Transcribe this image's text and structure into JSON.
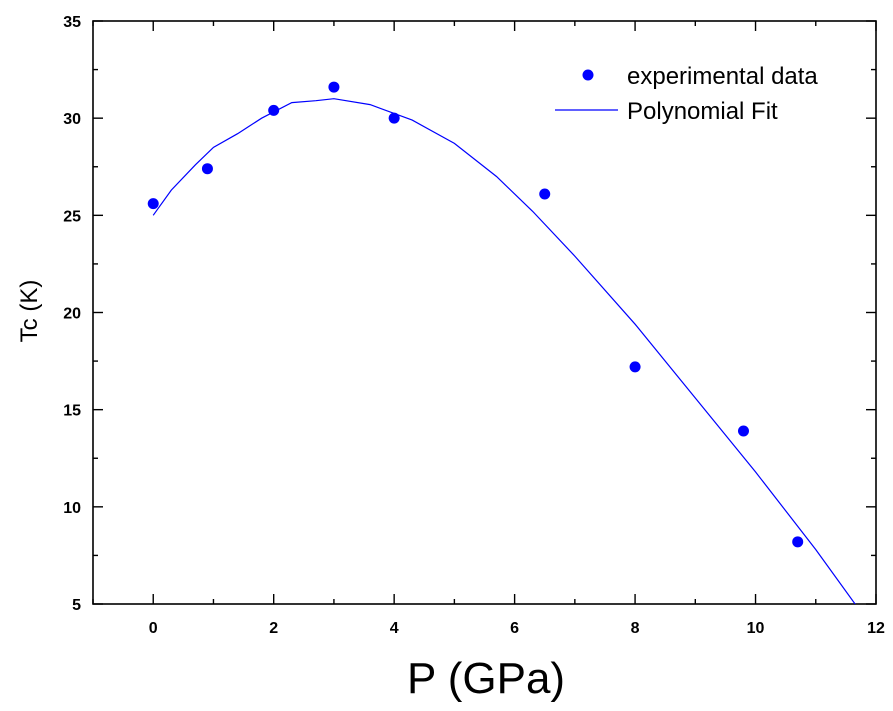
{
  "chart_data": {
    "type": "scatter",
    "title": "",
    "xlabel": "P (GPa)",
    "ylabel": "Tc (K)",
    "xlim": [
      -1,
      12
    ],
    "ylim": [
      5,
      35
    ],
    "xticks": [
      0,
      2,
      4,
      6,
      8,
      10,
      12
    ],
    "yticks": [
      5,
      10,
      15,
      20,
      25,
      30,
      35
    ],
    "grid": false,
    "legend_position": "top-right",
    "series": [
      {
        "name": "experimental data",
        "kind": "scatter",
        "color": "#0000ff",
        "x": [
          0,
          0.9,
          2,
          3,
          4,
          6.5,
          8,
          9.8,
          10.7
        ],
        "y": [
          25.6,
          27.4,
          30.4,
          31.6,
          30.0,
          26.1,
          17.2,
          13.9,
          8.2
        ]
      },
      {
        "name": "Polynomial Fit",
        "kind": "line",
        "color": "#0000ff",
        "x": [
          0,
          0.3,
          0.7,
          1.0,
          1.4,
          1.8,
          2.3,
          2.7,
          3.0,
          3.6,
          4.3,
          5.0,
          5.7,
          6.3,
          7.0,
          8.0,
          9.0,
          10.0,
          11.0,
          11.7
        ],
        "y": [
          25.0,
          26.3,
          27.6,
          28.5,
          29.2,
          30.0,
          30.8,
          30.9,
          31.0,
          30.7,
          29.9,
          28.7,
          27.0,
          25.2,
          22.9,
          19.4,
          15.6,
          11.8,
          7.8,
          4.8
        ]
      }
    ]
  }
}
